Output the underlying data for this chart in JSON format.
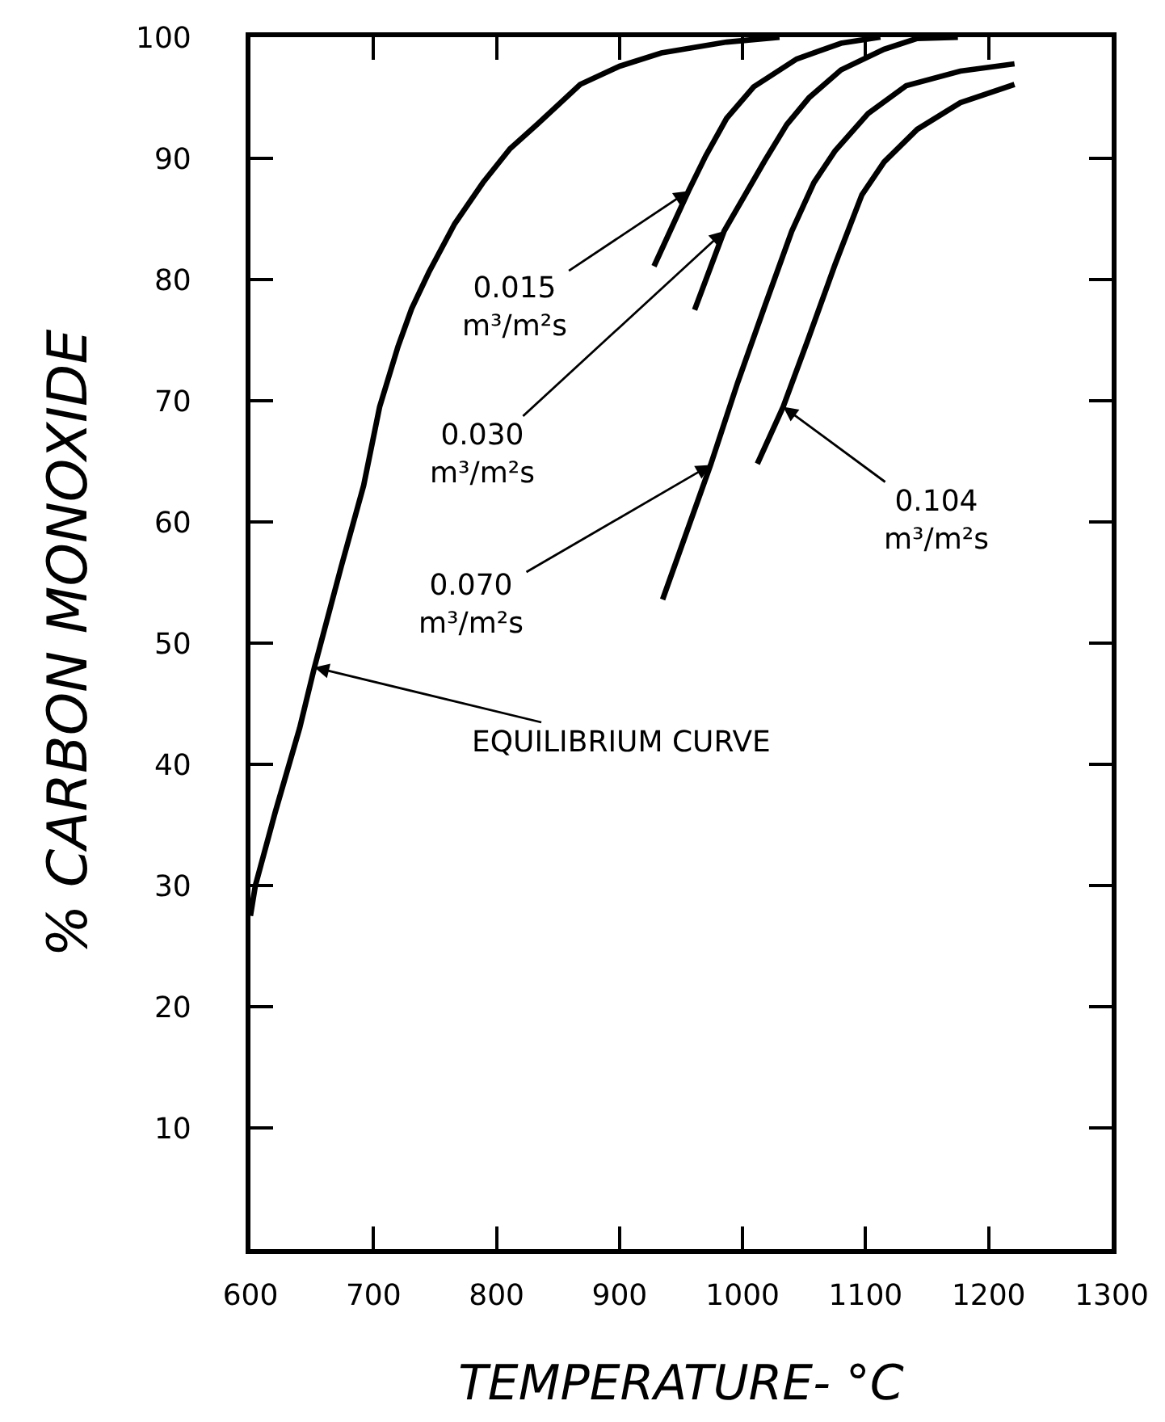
{
  "chart_data": {
    "type": "line",
    "xlabel": "TEMPERATURE- °C",
    "ylabel": "% CARBON MONOXIDE",
    "xlim": [
      600,
      1300
    ],
    "xticks": [
      600,
      700,
      800,
      900,
      1000,
      1100,
      1200,
      1300
    ],
    "ylim": [
      0,
      100
    ],
    "yticks": [
      10,
      20,
      30,
      40,
      50,
      60,
      70,
      80,
      90,
      100
    ],
    "marker": "none",
    "line_style": "solid",
    "series": [
      {
        "color": "#000000",
        "x": [
          600,
          604,
          620,
          640,
          652,
          674,
          692,
          705,
          720,
          731,
          745,
          766,
          789,
          811,
          833,
          868,
          900,
          934,
          987,
          1030
        ],
        "values": [
          27.5,
          30,
          36,
          43,
          48,
          56.4,
          63,
          69.5,
          74.5,
          77.6,
          80.6,
          84.6,
          88,
          90.8,
          92.8,
          96.1,
          97.6,
          98.7,
          99.6,
          100
        ]
      },
      {
        "color": "#000000",
        "x": [
          928,
          942,
          956,
          970,
          987,
          1009,
          1044,
          1080,
          1112
        ],
        "values": [
          81.1,
          84.2,
          87.3,
          90.2,
          93.3,
          95.9,
          98.2,
          99.5,
          100
        ]
      },
      {
        "color": "#000000",
        "x": [
          961,
          985,
          1018,
          1036,
          1054,
          1080,
          1115,
          1142,
          1175
        ],
        "values": [
          77.5,
          84,
          89.8,
          92.8,
          95,
          97.3,
          99,
          99.9,
          100
        ]
      },
      {
        "color": "#000000",
        "x": [
          935,
          974,
          996,
          1018,
          1040,
          1058,
          1075,
          1102,
          1133,
          1177,
          1221
        ],
        "values": [
          53.6,
          64.7,
          71.5,
          77.8,
          84,
          88,
          90.6,
          93.7,
          96,
          97.2,
          97.8
        ]
      },
      {
        "color": "#000000",
        "x": [
          1012,
          1033,
          1053,
          1075,
          1097,
          1115,
          1142,
          1177,
          1221
        ],
        "values": [
          64.8,
          69.5,
          75,
          81.2,
          87,
          89.7,
          92.4,
          94.6,
          96.1
        ]
      }
    ],
    "annotations": [
      {
        "text": "0.015\nm³/m²s",
        "x": 956,
        "y": 87.3
      },
      {
        "text": "0.030\nm³/m²s",
        "x": 985,
        "y": 84
      },
      {
        "text": "0.070\nm³/m²s",
        "x": 974,
        "y": 64.7
      },
      {
        "text": "0.104\nm³/m²s",
        "x": 1033,
        "y": 69.5
      },
      {
        "text": "EQUILIBRIUM CURVE",
        "x": 652,
        "y": 48
      }
    ]
  }
}
